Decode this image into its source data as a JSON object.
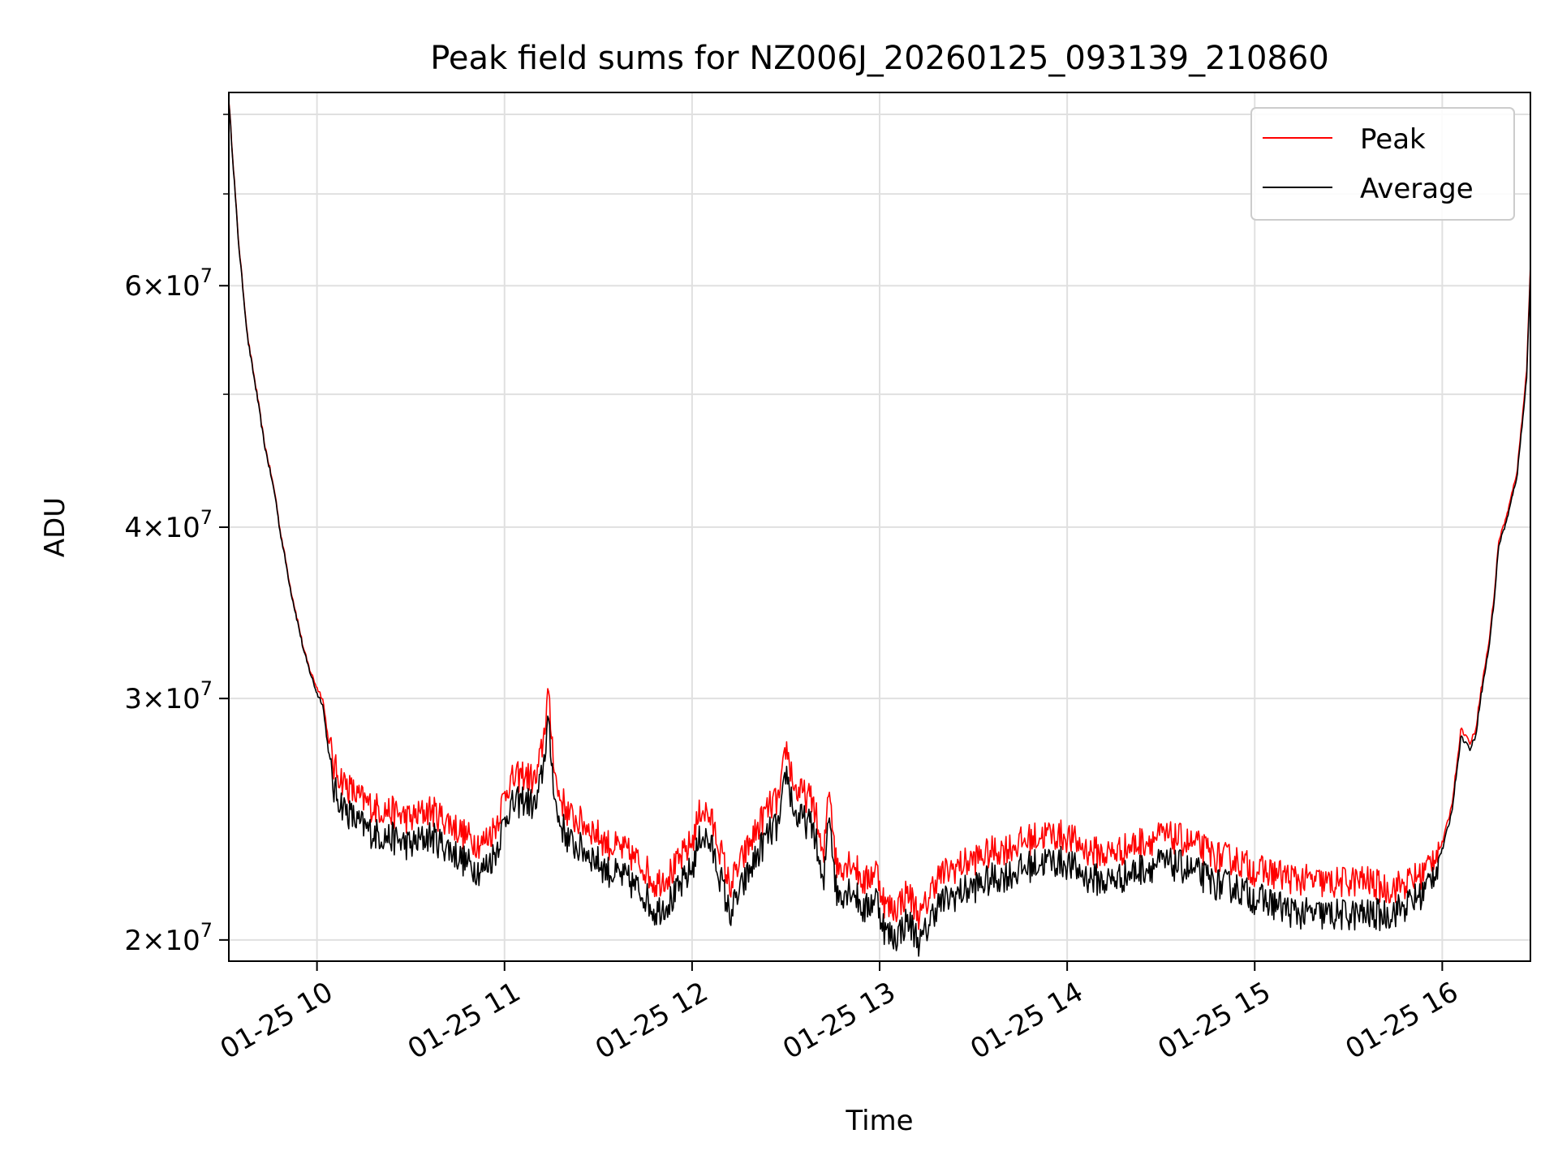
{
  "chart_data": {
    "type": "line",
    "title": "Peak field sums for NZ006J_20260125_093139_210860",
    "xlabel": "Time",
    "ylabel": "ADU",
    "x_unit": "hours (time of day, 2026-01-25)",
    "xlim": [
      9.53,
      16.47
    ],
    "ylim": [
      19300000,
      83000000
    ],
    "yscale": "log",
    "grid": true,
    "legend_position": "upper right",
    "x_ticks": [
      {
        "value": 10,
        "label": "01-25 10"
      },
      {
        "value": 11,
        "label": "01-25 11"
      },
      {
        "value": 12,
        "label": "01-25 12"
      },
      {
        "value": 13,
        "label": "01-25 13"
      },
      {
        "value": 14,
        "label": "01-25 14"
      },
      {
        "value": 15,
        "label": "01-25 15"
      },
      {
        "value": 16,
        "label": "01-25 16"
      }
    ],
    "y_ticks": [
      {
        "value": 20000000,
        "mantissa": "2",
        "base": "10",
        "exp": "7"
      },
      {
        "value": 30000000,
        "mantissa": "3",
        "base": "10",
        "exp": "7"
      },
      {
        "value": 40000000,
        "mantissa": "4",
        "base": "10",
        "exp": "7"
      },
      {
        "value": 60000000,
        "mantissa": "6",
        "base": "10",
        "exp": "7"
      }
    ],
    "y_minor_ticks": [
      50000000,
      70000000,
      80000000
    ],
    "series": [
      {
        "name": "Peak",
        "color": "#ff0000",
        "x": [
          9.53,
          9.58,
          9.63,
          9.68,
          9.72,
          9.75,
          9.78,
          9.8,
          9.83,
          9.86,
          9.9,
          9.93,
          9.96,
          10.0,
          10.03,
          10.06,
          10.09,
          10.15,
          10.22,
          10.3,
          10.4,
          10.5,
          10.6,
          10.7,
          10.8,
          10.88,
          10.95,
          11.02,
          11.1,
          11.17,
          11.21,
          11.23,
          11.28,
          11.35,
          11.45,
          11.55,
          11.65,
          11.75,
          11.8,
          11.9,
          12.0,
          12.05,
          12.1,
          12.15,
          12.2,
          12.3,
          12.4,
          12.47,
          12.5,
          12.55,
          12.6,
          12.65,
          12.7,
          12.73,
          12.77,
          12.85,
          12.92,
          12.98,
          13.03,
          13.08,
          13.15,
          13.22,
          13.3,
          13.4,
          13.5,
          13.6,
          13.7,
          13.8,
          13.9,
          14.0,
          14.1,
          14.2,
          14.3,
          14.4,
          14.5,
          14.6,
          14.7,
          14.8,
          14.9,
          15.0,
          15.1,
          15.2,
          15.3,
          15.4,
          15.5,
          15.6,
          15.7,
          15.8,
          15.9,
          15.95,
          16.0,
          16.05,
          16.08,
          16.1,
          16.15,
          16.18,
          16.2,
          16.25,
          16.28,
          16.3,
          16.35,
          16.4,
          16.45,
          16.47
        ],
        "y": [
          82000000,
          65000000,
          55000000,
          50000000,
          46000000,
          44000000,
          42000000,
          40000000,
          38000000,
          36000000,
          34000000,
          32500000,
          31500000,
          30500000,
          30000000,
          28000000,
          26500000,
          25800000,
          25200000,
          24800000,
          24600000,
          24300000,
          24700000,
          24200000,
          23600000,
          23300000,
          24000000,
          25800000,
          26200000,
          25900000,
          28000000,
          30000000,
          25500000,
          24400000,
          24000000,
          23300000,
          23000000,
          22400000,
          21800000,
          22300000,
          23400000,
          24800000,
          24300000,
          23100000,
          21700000,
          23200000,
          24700000,
          25200000,
          27500000,
          25500000,
          25300000,
          25000000,
          22500000,
          26000000,
          22400000,
          22700000,
          21800000,
          22400000,
          21000000,
          20900000,
          21500000,
          20600000,
          22000000,
          22400000,
          22700000,
          23000000,
          23200000,
          23500000,
          23700000,
          23600000,
          23100000,
          22900000,
          23100000,
          23400000,
          23600000,
          23500000,
          23200000,
          22800000,
          22700000,
          22300000,
          22200000,
          22000000,
          21900000,
          21800000,
          21900000,
          21900000,
          21600000,
          21800000,
          22200000,
          22800000,
          23500000,
          25000000,
          27000000,
          28500000,
          27800000,
          28500000,
          30000000,
          33000000,
          36000000,
          39000000,
          41000000,
          44000000,
          52000000,
          62000000
        ]
      },
      {
        "name": "Average",
        "color": "#000000",
        "x": [
          9.53,
          9.58,
          9.63,
          9.68,
          9.72,
          9.75,
          9.78,
          9.8,
          9.83,
          9.86,
          9.9,
          9.93,
          9.96,
          10.0,
          10.03,
          10.06,
          10.09,
          10.15,
          10.22,
          10.3,
          10.4,
          10.5,
          10.6,
          10.7,
          10.8,
          10.88,
          10.95,
          11.02,
          11.1,
          11.17,
          11.21,
          11.23,
          11.28,
          11.35,
          11.45,
          11.55,
          11.65,
          11.75,
          11.8,
          11.9,
          12.0,
          12.05,
          12.1,
          12.15,
          12.2,
          12.3,
          12.4,
          12.47,
          12.5,
          12.55,
          12.6,
          12.65,
          12.7,
          12.73,
          12.77,
          12.85,
          12.92,
          12.98,
          13.03,
          13.08,
          13.15,
          13.22,
          13.3,
          13.4,
          13.5,
          13.6,
          13.7,
          13.8,
          13.9,
          14.0,
          14.1,
          14.2,
          14.3,
          14.4,
          14.5,
          14.6,
          14.7,
          14.8,
          14.9,
          15.0,
          15.1,
          15.2,
          15.3,
          15.4,
          15.5,
          15.6,
          15.7,
          15.8,
          15.9,
          15.95,
          16.0,
          16.05,
          16.08,
          16.1,
          16.15,
          16.18,
          16.2,
          16.25,
          16.28,
          16.3,
          16.35,
          16.4,
          16.45,
          16.47
        ],
        "y": [
          82000000,
          65000000,
          55000000,
          50000000,
          46000000,
          44000000,
          42000000,
          40000000,
          38000000,
          36000000,
          34000000,
          32500000,
          31500000,
          30300000,
          29800000,
          27600000,
          26000000,
          25200000,
          24600000,
          24200000,
          24000000,
          23700000,
          24100000,
          23600000,
          23000000,
          22700000,
          23400000,
          25200000,
          25600000,
          25300000,
          27300000,
          29200000,
          24900000,
          23800000,
          23400000,
          22700000,
          22400000,
          21800000,
          21200000,
          21700000,
          22800000,
          24200000,
          23700000,
          22500000,
          21100000,
          22600000,
          24100000,
          24600000,
          26900000,
          24900000,
          24700000,
          24400000,
          21900000,
          25400000,
          21800000,
          22100000,
          21200000,
          21800000,
          20500000,
          20300000,
          20900000,
          20100000,
          21400000,
          21800000,
          22100000,
          22400000,
          22600000,
          22900000,
          23100000,
          23000000,
          22500000,
          22300000,
          22500000,
          22800000,
          23000000,
          22900000,
          22600000,
          22200000,
          22100000,
          21700000,
          21500000,
          21200000,
          21100000,
          21100000,
          21100000,
          21100000,
          21100000,
          21400000,
          21900000,
          22600000,
          23300000,
          24800000,
          26800000,
          28200000,
          27600000,
          28300000,
          29800000,
          32800000,
          35800000,
          38800000,
          40800000,
          43800000,
          51500000,
          61500000
        ]
      }
    ]
  }
}
